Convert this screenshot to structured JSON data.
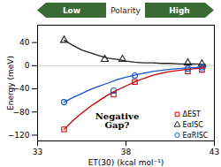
{
  "chart_data": {
    "type": "line",
    "xlabel": "ET(30) (kcal mol⁻¹)",
    "ylabel": "Energy (meV)",
    "xlim": [
      33,
      43
    ],
    "ylim": [
      -130,
      70
    ],
    "xticks": [
      33,
      38,
      43
    ],
    "yticks": [
      -120,
      -80,
      -40,
      0,
      40
    ],
    "legend": "lower right",
    "reference_lines": [
      0
    ],
    "annotations": [
      "Negative\nGap?"
    ],
    "header": {
      "left": "Low",
      "center": "Polarity",
      "right": "High",
      "color": "#3a6b35",
      "text_color": "#ffffff",
      "center_color": "#222222"
    },
    "series": [
      {
        "name": "ΔEST",
        "color": "#cc0000",
        "marker": "square",
        "x": [
          34.5,
          37.3,
          38.5,
          41.5,
          42.3
        ],
        "values": [
          -110,
          -50,
          -28,
          -10,
          -7
        ],
        "fit_x": [
          34.5,
          35.0,
          35.5,
          36.0,
          36.5,
          37.0,
          37.5,
          38.0,
          38.5,
          39.0,
          39.5,
          40.0,
          40.5,
          41.0,
          41.5,
          42.0,
          42.5
        ],
        "fit_values": [
          -110,
          -95,
          -82,
          -70,
          -60,
          -50,
          -42,
          -35,
          -28,
          -22,
          -17,
          -13,
          -10,
          -8,
          -6,
          -5,
          -4
        ]
      },
      {
        "name": "EαISC",
        "color": "#222222",
        "marker": "triangle",
        "x": [
          34.5,
          36.8,
          37.8,
          41.5,
          42.3
        ],
        "values": [
          44,
          11,
          11,
          5,
          3
        ],
        "fit_x": [
          34.5,
          35.0,
          35.5,
          36.0,
          36.5,
          37.0,
          37.5,
          38.0,
          38.5,
          39.0,
          39.5,
          40.0,
          40.5,
          41.0,
          41.5,
          42.0,
          42.5
        ],
        "fit_values": [
          44,
          35,
          27,
          22,
          17,
          13,
          11,
          8,
          6,
          5,
          5,
          4,
          4,
          3,
          3,
          3,
          2
        ]
      },
      {
        "name": "EαRISC",
        "color": "#1155cc",
        "marker": "circle",
        "x": [
          34.5,
          37.3,
          38.5,
          41.5,
          42.3
        ],
        "values": [
          -63,
          -43,
          -17,
          -5,
          -3
        ],
        "fit_x": [
          34.5,
          35.0,
          35.5,
          36.0,
          36.5,
          37.0,
          37.5,
          38.0,
          38.5,
          39.0,
          39.5,
          40.0,
          40.5,
          41.0,
          41.5,
          42.0,
          42.5
        ],
        "fit_values": [
          -63,
          -55,
          -48,
          -41,
          -35,
          -30,
          -24,
          -20,
          -16,
          -13,
          -10,
          -8,
          -6,
          -5,
          -4,
          -3,
          -2
        ]
      }
    ]
  }
}
